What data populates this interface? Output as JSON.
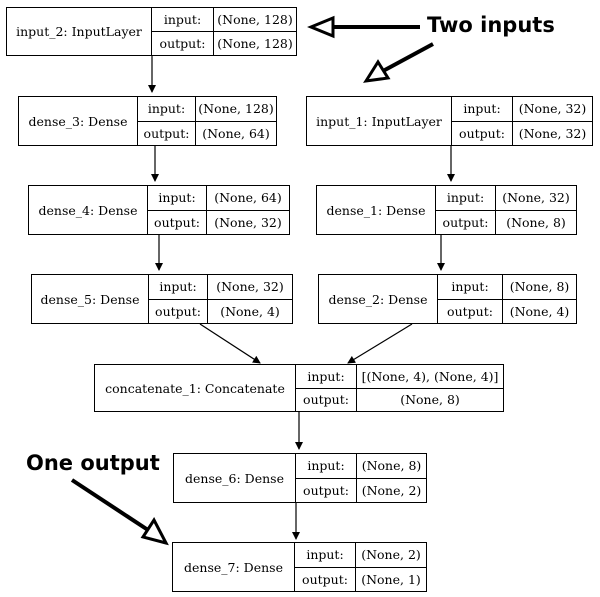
{
  "labels": {
    "input": "input:",
    "output": "output:"
  },
  "nodes": {
    "input_2": {
      "name": "input_2: InputLayer",
      "input": "(None, 128)",
      "output": "(None, 128)"
    },
    "dense_3": {
      "name": "dense_3: Dense",
      "input": "(None, 128)",
      "output": "(None, 64)"
    },
    "dense_4": {
      "name": "dense_4: Dense",
      "input": "(None, 64)",
      "output": "(None, 32)"
    },
    "dense_5": {
      "name": "dense_5: Dense",
      "input": "(None, 32)",
      "output": "(None, 4)"
    },
    "input_1": {
      "name": "input_1: InputLayer",
      "input": "(None, 32)",
      "output": "(None, 32)"
    },
    "dense_1": {
      "name": "dense_1: Dense",
      "input": "(None, 32)",
      "output": "(None, 8)"
    },
    "dense_2": {
      "name": "dense_2: Dense",
      "input": "(None, 8)",
      "output": "(None, 4)"
    },
    "concatenate_1": {
      "name": "concatenate_1: Concatenate",
      "input": "[(None, 4), (None, 4)]",
      "output": "(None, 8)"
    },
    "dense_6": {
      "name": "dense_6: Dense",
      "input": "(None, 8)",
      "output": "(None, 2)"
    },
    "dense_7": {
      "name": "dense_7: Dense",
      "input": "(None, 2)",
      "output": "(None, 1)"
    }
  },
  "annotations": {
    "two_inputs": "Two inputs",
    "one_output": "One output"
  }
}
